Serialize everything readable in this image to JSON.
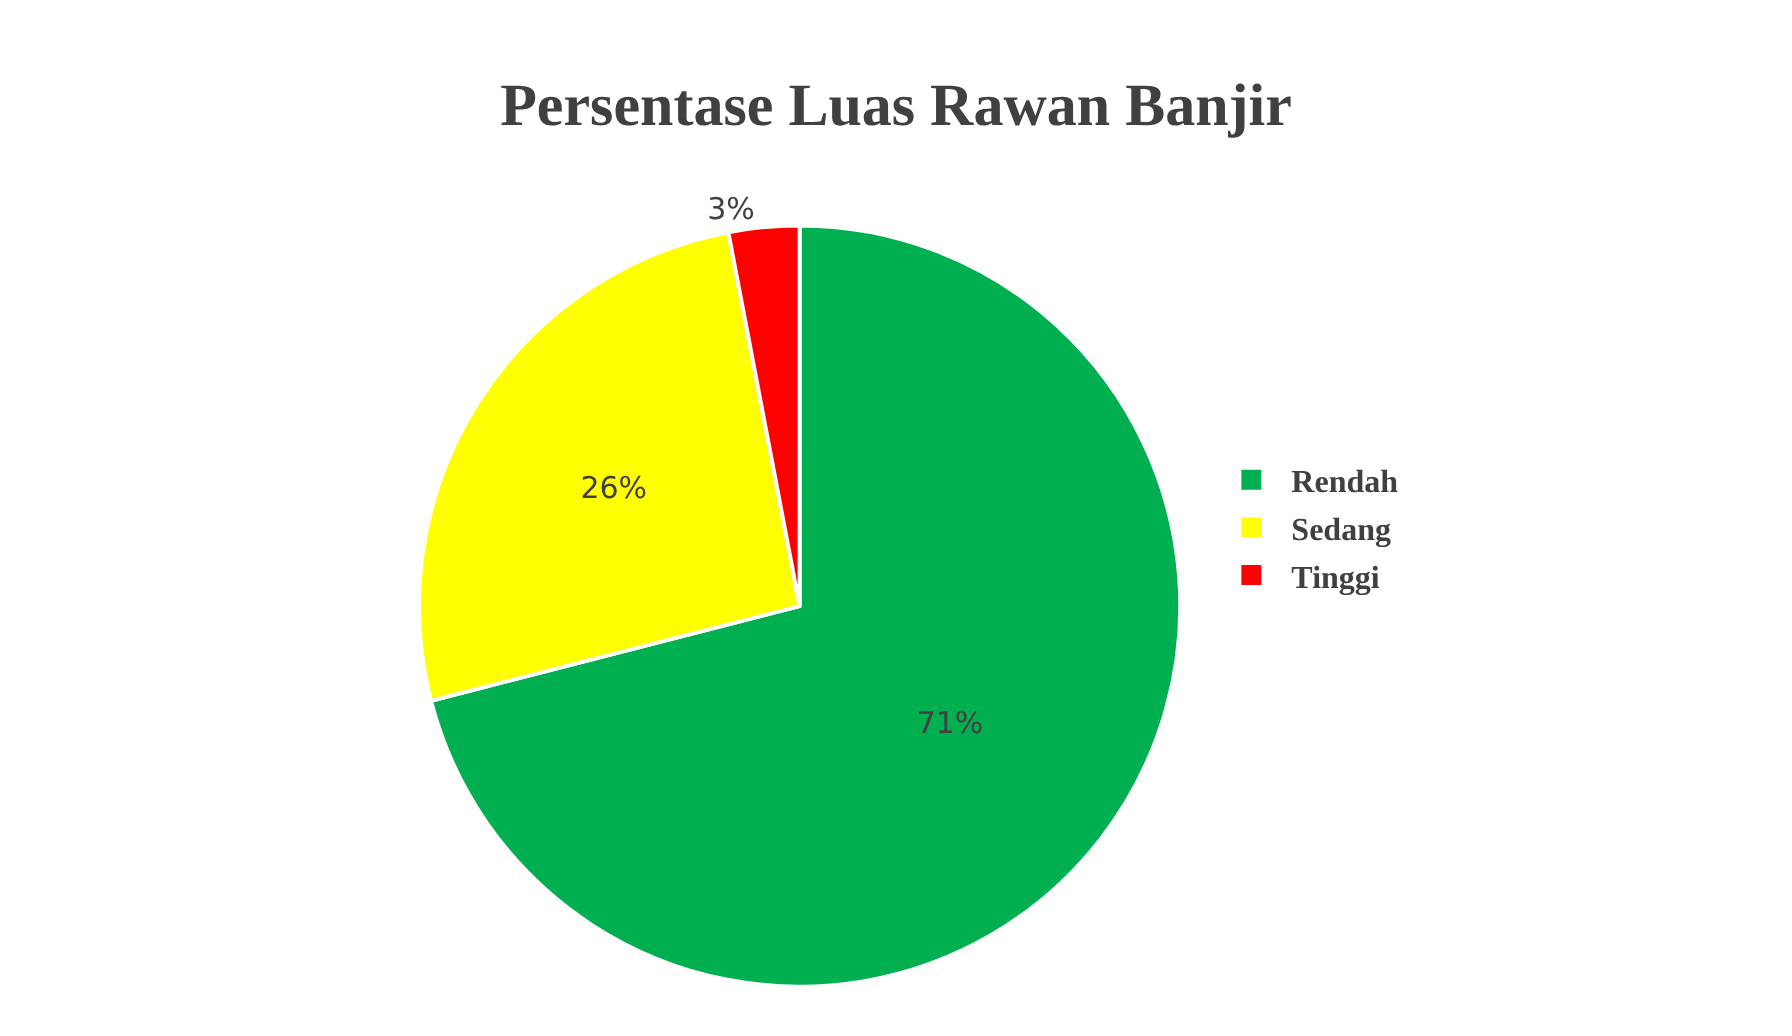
{
  "chart_data": {
    "type": "pie",
    "title": "Persentase Luas Rawan Banjir",
    "categories": [
      "Rendah",
      "Sedang",
      "Tinggi"
    ],
    "values": [
      71,
      26,
      3
    ],
    "value_labels": [
      "71%",
      "26%",
      "3%"
    ],
    "colors": [
      "#00b050",
      "#ffff00",
      "#ff0000"
    ],
    "legend": "right"
  }
}
